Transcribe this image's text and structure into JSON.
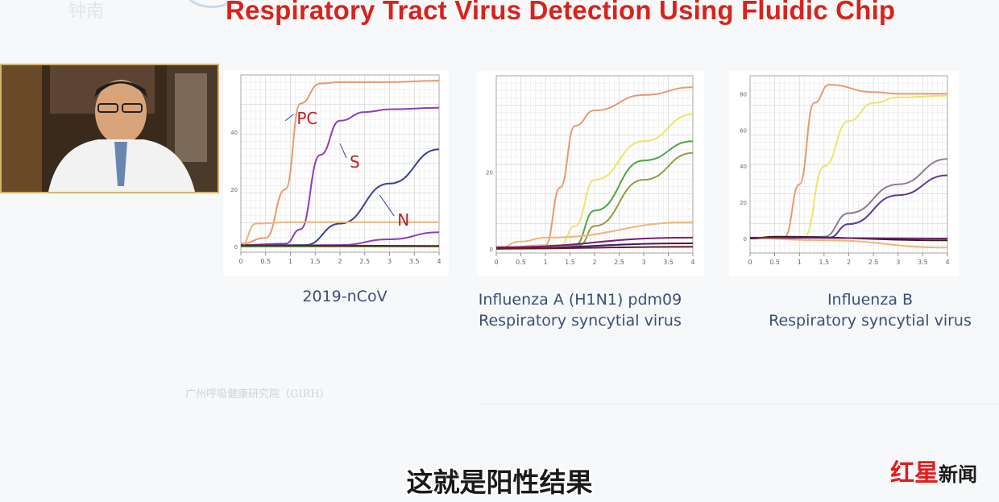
{
  "slide": {
    "title": "Respiratory Tract Virus Detection Using Fluidic Chip",
    "logo_text": "钟南",
    "institute": "广州呼吸健康研究院（GIRH）"
  },
  "subtitle": "这就是阳性结果",
  "brand": {
    "part1": "红星",
    "part2": "新闻"
  },
  "chart_data": [
    {
      "type": "line",
      "caption": [
        "2019-nCoV"
      ],
      "x_ticks": [
        "0",
        "0.5",
        "1",
        "1.5",
        "2",
        "2.5",
        "3",
        "3.5",
        "4"
      ],
      "xlim": [
        0,
        4
      ],
      "y_ticks": [
        "0",
        "20",
        "40"
      ],
      "ylim": [
        -2,
        60
      ],
      "annotations": [
        {
          "text": "PC",
          "series": "PC"
        },
        {
          "text": "S",
          "series": "S"
        },
        {
          "text": "N",
          "series": "N"
        }
      ],
      "series": [
        {
          "name": "PC",
          "color": "#e89a6e",
          "x": [
            0,
            0.5,
            0.9,
            1.2,
            1.6,
            2,
            3,
            4
          ],
          "y": [
            1,
            3,
            20,
            50,
            57,
            57.5,
            57.5,
            58
          ]
        },
        {
          "name": "S",
          "color": "#8b3db8",
          "x": [
            0,
            0.9,
            1.2,
            1.6,
            2,
            2.5,
            3,
            4
          ],
          "y": [
            0.5,
            1,
            6,
            32,
            44,
            47,
            48,
            48.5
          ]
        },
        {
          "name": "N",
          "color": "#3a3f9e",
          "x": [
            0,
            1.3,
            2,
            3,
            4
          ],
          "y": [
            0.3,
            0.5,
            8,
            22,
            34
          ]
        },
        {
          "color": "#f0b47a",
          "x": [
            0,
            0.3,
            1,
            4
          ],
          "y": [
            0,
            8,
            8.5,
            8.5
          ]
        },
        {
          "color": "#8b3db8",
          "x": [
            0,
            2,
            3,
            4
          ],
          "y": [
            0,
            0.5,
            2.5,
            5
          ]
        },
        {
          "color": "#3a9e3a",
          "x": [
            0,
            4
          ],
          "y": [
            0,
            0
          ]
        },
        {
          "color": "#6b1d1d",
          "x": [
            0,
            4
          ],
          "y": [
            0.4,
            0.2
          ]
        }
      ]
    },
    {
      "type": "line",
      "caption": [
        "Influenza A (H1N1) pdm09",
        "Respiratory syncytial virus"
      ],
      "x_ticks": [
        "0",
        "0.5",
        "1",
        "1.5",
        "2",
        "2.5",
        "3",
        "3.5",
        "4"
      ],
      "xlim": [
        0,
        4
      ],
      "y_ticks": [
        "0",
        "20"
      ],
      "ylim": [
        -1,
        45
      ],
      "series": [
        {
          "color": "#e89a6e",
          "x": [
            0,
            1,
            1.3,
            1.6,
            2,
            3,
            4
          ],
          "y": [
            0.3,
            1,
            16,
            32,
            36,
            40,
            42
          ]
        },
        {
          "color": "#f0e36a",
          "x": [
            0,
            1.3,
            1.6,
            2,
            3,
            4
          ],
          "y": [
            0.3,
            1,
            6,
            18,
            28,
            35
          ]
        },
        {
          "color": "#49a84a",
          "x": [
            0,
            1.6,
            2,
            3,
            4
          ],
          "y": [
            0.3,
            1,
            10,
            23,
            28
          ]
        },
        {
          "color": "#9b9a48",
          "x": [
            0,
            1.7,
            2,
            3,
            4
          ],
          "y": [
            0.3,
            1,
            6,
            18,
            25
          ]
        },
        {
          "color": "#f0b47a",
          "x": [
            0,
            0.5,
            1,
            4
          ],
          "y": [
            0,
            2,
            3,
            7
          ]
        },
        {
          "color": "#7a1f70",
          "x": [
            0,
            4
          ],
          "y": [
            0.5,
            3
          ]
        },
        {
          "color": "#3a1d6a",
          "x": [
            0,
            4
          ],
          "y": [
            0.2,
            1.5
          ]
        },
        {
          "color": "#6b1d1d",
          "x": [
            0,
            4
          ],
          "y": [
            0.1,
            0.6
          ]
        }
      ]
    },
    {
      "type": "line",
      "caption": [
        "Influenza B",
        "Respiratory syncytial virus"
      ],
      "x_ticks": [
        "0",
        "0.5",
        "1",
        "1.5",
        "2",
        "2.5",
        "3",
        "3.5",
        "4"
      ],
      "xlim": [
        0,
        4
      ],
      "y_ticks": [
        "0",
        "20",
        "40",
        "60",
        "80"
      ],
      "ylim": [
        -8,
        90
      ],
      "series": [
        {
          "color": "#e89a6e",
          "x": [
            0,
            0.7,
            1,
            1.3,
            1.6,
            2.5,
            3,
            4
          ],
          "y": [
            0,
            1,
            30,
            75,
            85,
            81,
            80,
            80
          ]
        },
        {
          "color": "#f0e36a",
          "x": [
            0,
            1.1,
            1.5,
            2,
            2.5,
            3,
            4
          ],
          "y": [
            0,
            1,
            40,
            65,
            75,
            78,
            79
          ]
        },
        {
          "color": "#8f7a96",
          "x": [
            0,
            1.5,
            2,
            3,
            4
          ],
          "y": [
            0,
            1,
            14,
            30,
            44
          ]
        },
        {
          "color": "#5a3a9e",
          "x": [
            0,
            1.6,
            2,
            3,
            4
          ],
          "y": [
            0,
            0.5,
            8,
            24,
            35
          ]
        },
        {
          "color": "#f0b47a",
          "x": [
            0,
            1.5,
            4
          ],
          "y": [
            0,
            -1,
            -5
          ]
        },
        {
          "color": "#3a1d1d",
          "x": [
            0,
            0.5,
            4
          ],
          "y": [
            0,
            1,
            -1
          ]
        },
        {
          "color": "#6b1d6b",
          "x": [
            0,
            4
          ],
          "y": [
            0.5,
            0
          ]
        }
      ]
    }
  ]
}
